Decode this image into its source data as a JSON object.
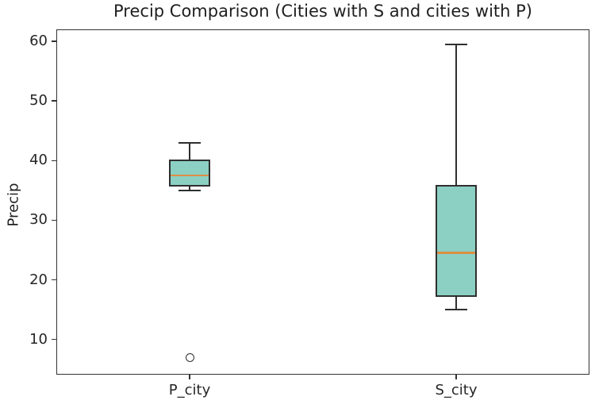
{
  "chart_data": {
    "type": "boxplot",
    "title": "Precip Comparison (Cities with S and cities with P)",
    "xlabel": "",
    "ylabel": "Precip",
    "categories": [
      "P_city",
      "S_city"
    ],
    "y_ticks": [
      10,
      20,
      30,
      40,
      50,
      60
    ],
    "ylim": [
      4.1,
      62.0
    ],
    "grid": "off",
    "legend": "none",
    "series": [
      {
        "name": "P_city",
        "whisker_low": 35.0,
        "q1": 35.75,
        "median": 37.5,
        "q3": 40.0,
        "whisker_high": 43.0,
        "outliers": [
          7.0
        ]
      },
      {
        "name": "S_city",
        "whisker_low": 15.0,
        "q1": 17.25,
        "median": 24.5,
        "q3": 35.75,
        "whisker_high": 59.5,
        "outliers": []
      }
    ],
    "colors": {
      "box_fill": "#8bd0c3",
      "box_edge": "#2f2f2f",
      "median": "#dd8e44",
      "whisker": "#2f2f2f",
      "flier_edge": "#2f2f2f",
      "axis": "#333333",
      "text": "#262626",
      "background": "#ffffff"
    }
  }
}
